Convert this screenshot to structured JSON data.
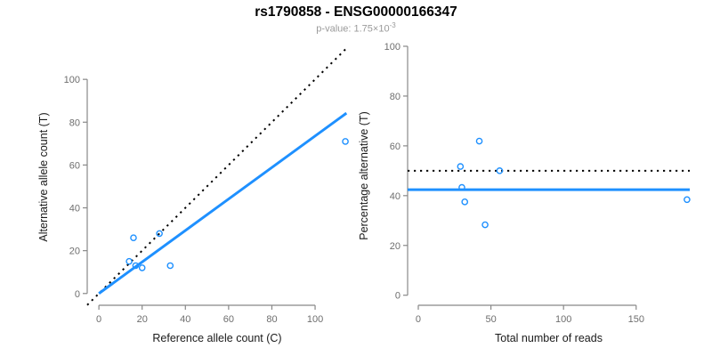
{
  "header": {
    "title": "rs1790858 - ENSG00000166347",
    "subtitle_prefix": "p-value: 1.75×10",
    "subtitle_exponent": "-3"
  },
  "colors": {
    "accent_blue": "#1E90FF",
    "reference_line_black": "#000000",
    "axis_line": "#888888",
    "tick_label": "#6e6e6e",
    "axis_title": "#1a1a1a",
    "subtitle_gray": "#9a9a9a"
  },
  "chart_data": [
    {
      "id": "allele-counts-scatter",
      "type": "scatter",
      "xlabel": "Reference allele count (C)",
      "ylabel": "Alternative allele count (T)",
      "xticks": [
        0,
        20,
        40,
        60,
        80,
        100
      ],
      "yticks": [
        0,
        20,
        40,
        60,
        80,
        100
      ],
      "xlim": [
        0,
        114
      ],
      "ylim": [
        0,
        114
      ],
      "points": [
        [
          16,
          26
        ],
        [
          28,
          28
        ],
        [
          14,
          15
        ],
        [
          17,
          13
        ],
        [
          20,
          12
        ],
        [
          33,
          13
        ],
        [
          114,
          71
        ]
      ],
      "lines": [
        {
          "name": "expected-50pct-identity",
          "style": "dotted",
          "color": "#000000",
          "slope": 1,
          "intercept": 0
        },
        {
          "name": "observed-ratio-fit",
          "style": "solid",
          "color": "#1E90FF",
          "slope": 0.7355,
          "intercept": 0,
          "xrange": [
            0,
            114.5
          ]
        }
      ]
    },
    {
      "id": "percentage-vs-coverage-scatter",
      "type": "scatter",
      "xlabel": "Total number of reads",
      "ylabel": "Percentage alternative (T)",
      "xticks": [
        0,
        50,
        100,
        150
      ],
      "yticks": [
        0,
        20,
        40,
        60,
        80,
        100
      ],
      "xlim": [
        0,
        185
      ],
      "ylim": [
        0,
        100
      ],
      "points": [
        [
          42,
          61.9
        ],
        [
          56,
          50
        ],
        [
          29,
          51.7
        ],
        [
          30,
          43.3
        ],
        [
          32,
          37.5
        ],
        [
          46,
          28.3
        ],
        [
          185,
          38.4
        ]
      ],
      "lines": [
        {
          "name": "reference-50pct",
          "style": "dotted",
          "color": "#000000",
          "hline": 50
        },
        {
          "name": "overall-percentage",
          "style": "solid",
          "color": "#1E90FF",
          "hline": 42.4
        }
      ]
    }
  ]
}
